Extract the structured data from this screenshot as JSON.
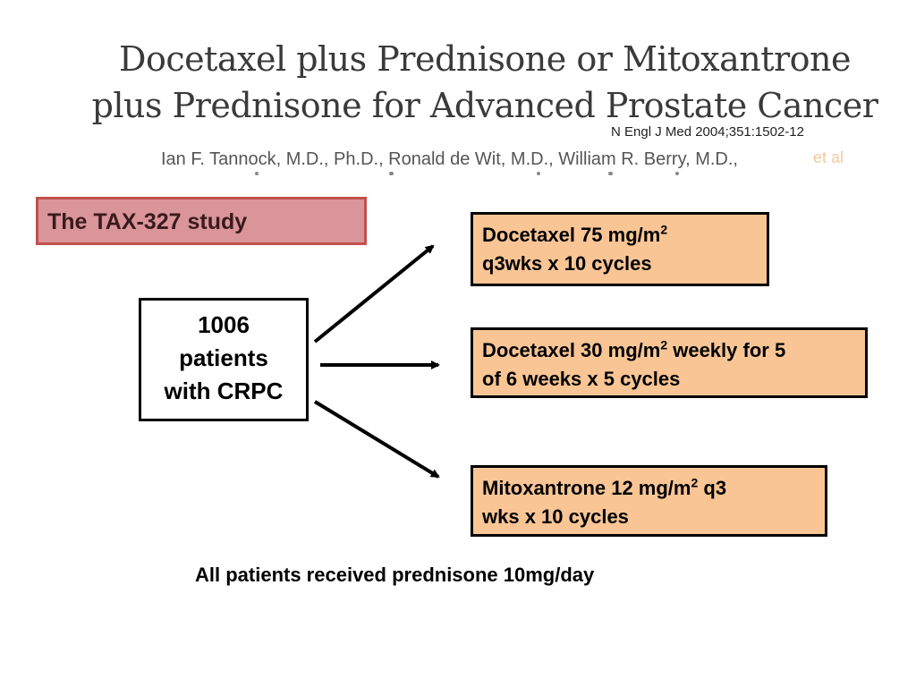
{
  "title": {
    "line1": "Docetaxel plus Prednisone or Mitoxantrone",
    "line2": "plus Prednisone for Advanced Prostate Cancer"
  },
  "citation": "N Engl J Med 2004;351:1502-12",
  "authors": "Ian F. Tannock, M.D., Ph.D., Ronald de Wit, M.D., William R. Berry, M.D.,",
  "et_al": "et al",
  "study_label": "The TAX-327 study",
  "patients": {
    "line1": "1006",
    "line2": "patients",
    "line3": "with CRPC"
  },
  "arms": [
    {
      "pre": "Docetaxel 75 mg/m",
      "sup": "2",
      "post": "",
      "line2": "q3wks x 10 cycles"
    },
    {
      "pre": "Docetaxel 30 mg/m",
      "sup": "2",
      "post": " weekly for 5",
      "line2": "of 6 weeks x 5 cycles"
    },
    {
      "pre": "Mitoxantrone 12 mg/m",
      "sup": "2",
      "post": " q3",
      "line2": "wks x 10 cycles"
    }
  ],
  "footnote": "All patients received prednisone 10mg/day",
  "colors": {
    "study_fill": "#d9959a",
    "study_border": "#c0504d",
    "arm_fill": "#f9c595",
    "title_text": "#3a3a3a"
  }
}
